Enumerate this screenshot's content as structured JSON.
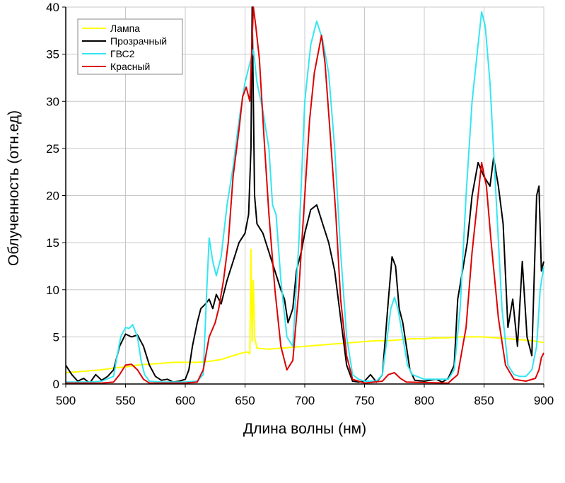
{
  "chart_data": {
    "type": "line",
    "xlabel": "Длина волны (нм)",
    "ylabel": "Облученность (отн.ед)",
    "xlim": [
      500,
      900
    ],
    "ylim": [
      0,
      40
    ],
    "xticks": [
      500,
      550,
      600,
      650,
      700,
      750,
      800,
      850,
      900
    ],
    "yticks": [
      0,
      5,
      10,
      15,
      20,
      25,
      30,
      35,
      40
    ],
    "grid": true,
    "legend_position": "top-left",
    "series": [
      {
        "name": "Лампа",
        "color": "#ffff00",
        "points": [
          [
            500,
            1.2
          ],
          [
            510,
            1.3
          ],
          [
            520,
            1.4
          ],
          [
            530,
            1.5
          ],
          [
            540,
            1.7
          ],
          [
            550,
            1.8
          ],
          [
            560,
            2.0
          ],
          [
            570,
            2.1
          ],
          [
            580,
            2.2
          ],
          [
            590,
            2.3
          ],
          [
            600,
            2.3
          ],
          [
            610,
            2.3
          ],
          [
            620,
            2.4
          ],
          [
            630,
            2.6
          ],
          [
            640,
            3.0
          ],
          [
            648,
            3.3
          ],
          [
            652,
            3.4
          ],
          [
            654,
            3.2
          ],
          [
            655,
            14.3
          ],
          [
            656,
            4.5
          ],
          [
            657,
            11.0
          ],
          [
            658,
            5.0
          ],
          [
            660,
            3.8
          ],
          [
            670,
            3.7
          ],
          [
            680,
            3.8
          ],
          [
            690,
            3.9
          ],
          [
            700,
            4.0
          ],
          [
            710,
            4.1
          ],
          [
            720,
            4.2
          ],
          [
            730,
            4.3
          ],
          [
            740,
            4.4
          ],
          [
            750,
            4.5
          ],
          [
            760,
            4.6
          ],
          [
            770,
            4.6
          ],
          [
            780,
            4.7
          ],
          [
            790,
            4.8
          ],
          [
            800,
            4.8
          ],
          [
            810,
            4.9
          ],
          [
            820,
            4.9
          ],
          [
            830,
            5.0
          ],
          [
            840,
            5.0
          ],
          [
            850,
            5.0
          ],
          [
            860,
            4.9
          ],
          [
            870,
            4.8
          ],
          [
            880,
            4.7
          ],
          [
            890,
            4.6
          ],
          [
            900,
            4.4
          ]
        ]
      },
      {
        "name": "Прозрачный",
        "color": "#000000",
        "points": [
          [
            500,
            2.0
          ],
          [
            505,
            1.0
          ],
          [
            510,
            0.3
          ],
          [
            515,
            0.6
          ],
          [
            520,
            0.1
          ],
          [
            525,
            1.0
          ],
          [
            530,
            0.4
          ],
          [
            535,
            0.8
          ],
          [
            540,
            1.5
          ],
          [
            545,
            4.0
          ],
          [
            550,
            5.3
          ],
          [
            555,
            5.0
          ],
          [
            560,
            5.2
          ],
          [
            565,
            4.0
          ],
          [
            570,
            2.0
          ],
          [
            575,
            0.8
          ],
          [
            580,
            0.4
          ],
          [
            585,
            0.5
          ],
          [
            590,
            0.2
          ],
          [
            595,
            0.3
          ],
          [
            600,
            0.5
          ],
          [
            603,
            1.5
          ],
          [
            606,
            4.0
          ],
          [
            610,
            6.5
          ],
          [
            613,
            8.0
          ],
          [
            617,
            8.5
          ],
          [
            620,
            9.0
          ],
          [
            623,
            8.0
          ],
          [
            626,
            9.5
          ],
          [
            630,
            8.5
          ],
          [
            635,
            11.0
          ],
          [
            640,
            13.0
          ],
          [
            645,
            15.0
          ],
          [
            650,
            16.0
          ],
          [
            653,
            18.0
          ],
          [
            655,
            25.0
          ],
          [
            656,
            40.0
          ],
          [
            657,
            30.0
          ],
          [
            658,
            20.0
          ],
          [
            660,
            17.0
          ],
          [
            665,
            16.0
          ],
          [
            670,
            14.0
          ],
          [
            675,
            12.0
          ],
          [
            680,
            10.0
          ],
          [
            683,
            9.0
          ],
          [
            686,
            6.5
          ],
          [
            690,
            8.0
          ],
          [
            693,
            12.0
          ],
          [
            697,
            14.0
          ],
          [
            700,
            16.0
          ],
          [
            705,
            18.5
          ],
          [
            710,
            19.0
          ],
          [
            715,
            17.0
          ],
          [
            720,
            15.0
          ],
          [
            725,
            12.0
          ],
          [
            730,
            7.0
          ],
          [
            735,
            2.0
          ],
          [
            740,
            0.3
          ],
          [
            745,
            0.2
          ],
          [
            750,
            0.3
          ],
          [
            755,
            1.0
          ],
          [
            760,
            0.2
          ],
          [
            765,
            1.0
          ],
          [
            770,
            9.0
          ],
          [
            773,
            13.5
          ],
          [
            776,
            12.5
          ],
          [
            779,
            8.0
          ],
          [
            782,
            6.5
          ],
          [
            785,
            4.0
          ],
          [
            788,
            1.5
          ],
          [
            792,
            0.4
          ],
          [
            800,
            0.3
          ],
          [
            810,
            0.5
          ],
          [
            815,
            0.2
          ],
          [
            820,
            0.6
          ],
          [
            825,
            2.0
          ],
          [
            828,
            9.0
          ],
          [
            832,
            12.0
          ],
          [
            836,
            15.0
          ],
          [
            840,
            20.0
          ],
          [
            845,
            23.5
          ],
          [
            850,
            22.0
          ],
          [
            855,
            21.0
          ],
          [
            858,
            24.0
          ],
          [
            862,
            21.0
          ],
          [
            866,
            17.0
          ],
          [
            870,
            6.0
          ],
          [
            874,
            9.0
          ],
          [
            878,
            4.0
          ],
          [
            882,
            13.0
          ],
          [
            886,
            5.0
          ],
          [
            890,
            3.0
          ],
          [
            894,
            20.0
          ],
          [
            896,
            21.0
          ],
          [
            898,
            12.0
          ],
          [
            900,
            13.0
          ]
        ]
      },
      {
        "name": "ГВС2",
        "color": "#33e6f2",
        "points": [
          [
            500,
            0.2
          ],
          [
            510,
            0.2
          ],
          [
            520,
            0.2
          ],
          [
            530,
            0.3
          ],
          [
            540,
            0.8
          ],
          [
            543,
            3.0
          ],
          [
            546,
            5.0
          ],
          [
            550,
            6.0
          ],
          [
            553,
            5.9
          ],
          [
            556,
            6.3
          ],
          [
            560,
            5.0
          ],
          [
            563,
            2.5
          ],
          [
            566,
            1.0
          ],
          [
            570,
            0.3
          ],
          [
            580,
            0.2
          ],
          [
            590,
            0.2
          ],
          [
            600,
            0.2
          ],
          [
            610,
            0.3
          ],
          [
            615,
            1.0
          ],
          [
            618,
            10.0
          ],
          [
            620,
            15.5
          ],
          [
            623,
            13.0
          ],
          [
            626,
            11.5
          ],
          [
            630,
            13.5
          ],
          [
            635,
            19.0
          ],
          [
            640,
            23.0
          ],
          [
            645,
            28.0
          ],
          [
            650,
            32.0
          ],
          [
            655,
            34.5
          ],
          [
            657,
            35.5
          ],
          [
            660,
            32.0
          ],
          [
            665,
            29.0
          ],
          [
            670,
            25.0
          ],
          [
            673,
            19.0
          ],
          [
            676,
            18.0
          ],
          [
            680,
            11.0
          ],
          [
            685,
            5.0
          ],
          [
            690,
            4.0
          ],
          [
            695,
            15.0
          ],
          [
            700,
            30.0
          ],
          [
            705,
            36.0
          ],
          [
            710,
            38.5
          ],
          [
            715,
            36.5
          ],
          [
            720,
            33.0
          ],
          [
            725,
            25.0
          ],
          [
            730,
            14.0
          ],
          [
            735,
            5.0
          ],
          [
            740,
            1.0
          ],
          [
            745,
            0.5
          ],
          [
            750,
            0.3
          ],
          [
            760,
            0.3
          ],
          [
            765,
            1.0
          ],
          [
            768,
            4.0
          ],
          [
            772,
            8.0
          ],
          [
            775,
            9.2
          ],
          [
            778,
            8.0
          ],
          [
            782,
            5.0
          ],
          [
            786,
            2.0
          ],
          [
            790,
            1.0
          ],
          [
            800,
            0.5
          ],
          [
            820,
            0.5
          ],
          [
            825,
            1.5
          ],
          [
            830,
            8.0
          ],
          [
            835,
            20.0
          ],
          [
            840,
            30.0
          ],
          [
            845,
            36.0
          ],
          [
            848,
            39.5
          ],
          [
            851,
            38.0
          ],
          [
            855,
            32.0
          ],
          [
            860,
            20.0
          ],
          [
            865,
            8.0
          ],
          [
            870,
            2.0
          ],
          [
            875,
            1.0
          ],
          [
            880,
            0.8
          ],
          [
            885,
            0.8
          ],
          [
            890,
            1.5
          ],
          [
            894,
            4.0
          ],
          [
            897,
            10.0
          ],
          [
            900,
            12.5
          ]
        ]
      },
      {
        "name": "Красный",
        "color": "#dd0000",
        "points": [
          [
            500,
            0.1
          ],
          [
            530,
            0.1
          ],
          [
            540,
            0.2
          ],
          [
            545,
            1.0
          ],
          [
            550,
            2.0
          ],
          [
            555,
            2.1
          ],
          [
            560,
            1.5
          ],
          [
            565,
            0.5
          ],
          [
            570,
            0.1
          ],
          [
            600,
            0.1
          ],
          [
            610,
            0.2
          ],
          [
            615,
            1.5
          ],
          [
            620,
            5.0
          ],
          [
            625,
            6.5
          ],
          [
            628,
            8.0
          ],
          [
            632,
            11.0
          ],
          [
            636,
            15.0
          ],
          [
            640,
            22.0
          ],
          [
            645,
            27.0
          ],
          [
            648,
            30.5
          ],
          [
            651,
            31.5
          ],
          [
            654,
            30.0
          ],
          [
            657,
            40.0
          ],
          [
            659,
            38.0
          ],
          [
            662,
            34.5
          ],
          [
            666,
            26.0
          ],
          [
            670,
            18.0
          ],
          [
            675,
            10.0
          ],
          [
            680,
            4.0
          ],
          [
            685,
            1.5
          ],
          [
            690,
            2.5
          ],
          [
            695,
            10.0
          ],
          [
            700,
            20.0
          ],
          [
            704,
            28.0
          ],
          [
            708,
            33.0
          ],
          [
            711,
            35.0
          ],
          [
            714,
            37.0
          ],
          [
            717,
            34.0
          ],
          [
            721,
            27.0
          ],
          [
            726,
            18.0
          ],
          [
            730,
            9.0
          ],
          [
            735,
            3.0
          ],
          [
            740,
            0.5
          ],
          [
            750,
            0.1
          ],
          [
            765,
            0.3
          ],
          [
            770,
            1.0
          ],
          [
            775,
            1.2
          ],
          [
            780,
            0.6
          ],
          [
            785,
            0.2
          ],
          [
            820,
            0.1
          ],
          [
            828,
            1.0
          ],
          [
            835,
            6.0
          ],
          [
            840,
            14.0
          ],
          [
            845,
            20.0
          ],
          [
            848,
            23.5
          ],
          [
            852,
            21.0
          ],
          [
            856,
            15.0
          ],
          [
            862,
            7.0
          ],
          [
            868,
            2.0
          ],
          [
            875,
            0.5
          ],
          [
            885,
            0.3
          ],
          [
            893,
            0.6
          ],
          [
            896,
            1.5
          ],
          [
            898,
            2.8
          ],
          [
            900,
            3.3
          ]
        ]
      }
    ]
  }
}
